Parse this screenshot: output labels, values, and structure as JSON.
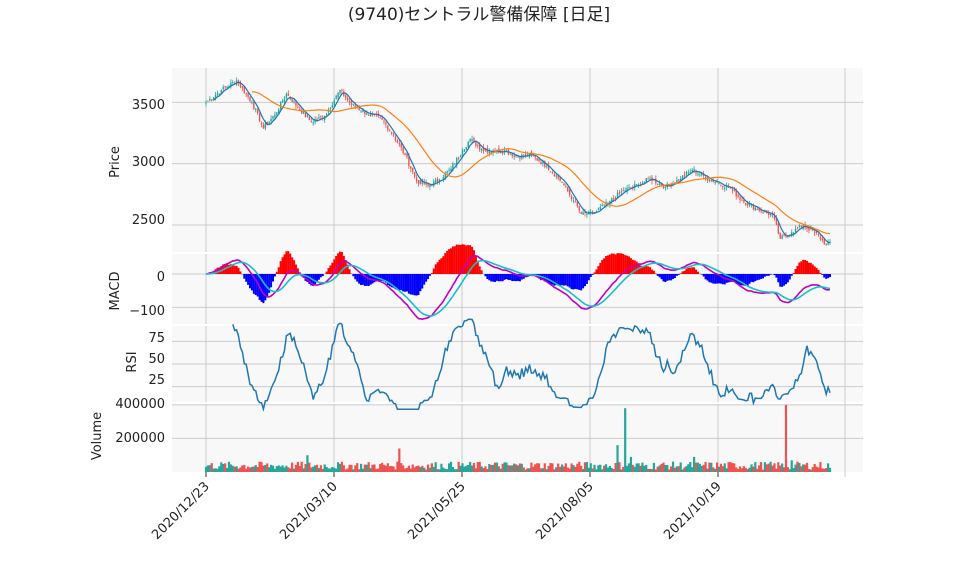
{
  "chart_data": {
    "type": "candlestick",
    "title": "(9740)セントラル警備保障 [日足]",
    "x_tick_labels": [
      "2020/12/23",
      "2021/03/10",
      "2021/05/25",
      "2021/08/05",
      "2021/10/19"
    ],
    "panels": [
      {
        "id": "price",
        "ylabel": "Price",
        "yticks": [
          "2500",
          "3000",
          "3500"
        ],
        "ylim": [
          2280,
          3780
        ],
        "series": [
          {
            "type": "candlestick",
            "up_color": "#26a69a",
            "down_color": "#ef5350",
            "close_anchors": [
              [
                0,
                3500
              ],
              [
                8,
                3600
              ],
              [
                16,
                3680
              ],
              [
                24,
                3500
              ],
              [
                30,
                3290
              ],
              [
                36,
                3400
              ],
              [
                42,
                3570
              ],
              [
                48,
                3460
              ],
              [
                55,
                3340
              ],
              [
                62,
                3390
              ],
              [
                70,
                3600
              ],
              [
                76,
                3480
              ],
              [
                84,
                3410
              ],
              [
                92,
                3360
              ],
              [
                98,
                3230
              ],
              [
                104,
                3070
              ],
              [
                110,
                2860
              ],
              [
                116,
                2820
              ],
              [
                122,
                2870
              ],
              [
                128,
                2960
              ],
              [
                134,
                3110
              ],
              [
                138,
                3200
              ],
              [
                144,
                3120
              ],
              [
                150,
                3100
              ],
              [
                156,
                3110
              ],
              [
                162,
                3060
              ],
              [
                170,
                3070
              ],
              [
                178,
                2980
              ],
              [
                186,
                2850
              ],
              [
                192,
                2700
              ],
              [
                196,
                2590
              ],
              [
                202,
                2590
              ],
              [
                210,
                2680
              ],
              [
                218,
                2780
              ],
              [
                226,
                2830
              ],
              [
                232,
                2880
              ],
              [
                240,
                2810
              ],
              [
                248,
                2880
              ],
              [
                254,
                2950
              ],
              [
                262,
                2880
              ],
              [
                268,
                2840
              ],
              [
                274,
                2800
              ],
              [
                280,
                2700
              ],
              [
                288,
                2630
              ],
              [
                296,
                2580
              ],
              [
                300,
                2390
              ],
              [
                306,
                2440
              ],
              [
                312,
                2500
              ],
              [
                318,
                2440
              ],
              [
                324,
                2340
              ],
              [
                326,
                2360
              ]
            ]
          },
          {
            "type": "line",
            "name": "",
            "window": 5,
            "color": "#1f77b4"
          },
          {
            "type": "line",
            "name": "",
            "window": 25,
            "color": "#ff7f0e"
          }
        ]
      },
      {
        "id": "macd",
        "ylabel": "MACD",
        "yticks": [
          "0",
          "−100"
        ],
        "ylim": [
          -150,
          60
        ],
        "series": [
          {
            "type": "bar",
            "name": "histogram",
            "pos_color": "#ff0000",
            "neg_color": "#0000ff"
          },
          {
            "type": "line",
            "name": "macd",
            "color": "#bf00bf"
          },
          {
            "type": "line",
            "name": "signal",
            "color": "#17becf"
          }
        ]
      },
      {
        "id": "rsi",
        "ylabel": "RSI",
        "yticks": [
          "25",
          "50",
          "75"
        ],
        "ylim": [
          8,
          92
        ],
        "series": [
          {
            "type": "line",
            "name": "rsi",
            "window": 14,
            "color": "#1f77b4"
          }
        ]
      },
      {
        "id": "volume",
        "ylabel": "Volume",
        "yticks": [
          "200000",
          "400000"
        ],
        "ylim": [
          0,
          405000
        ],
        "series": [
          {
            "type": "bar",
            "name": "volume",
            "up_color": "#26a69a",
            "down_color": "#ef5350",
            "base_level": 40000,
            "spikes": [
              [
                53,
                100000
              ],
              [
                101,
                140000
              ],
              [
                215,
                160000
              ],
              [
                219,
                380000
              ],
              [
                222,
                90000
              ],
              [
                255,
                90000
              ],
              [
                303,
                400000
              ],
              [
                306,
                70000
              ]
            ]
          }
        ]
      }
    ]
  }
}
